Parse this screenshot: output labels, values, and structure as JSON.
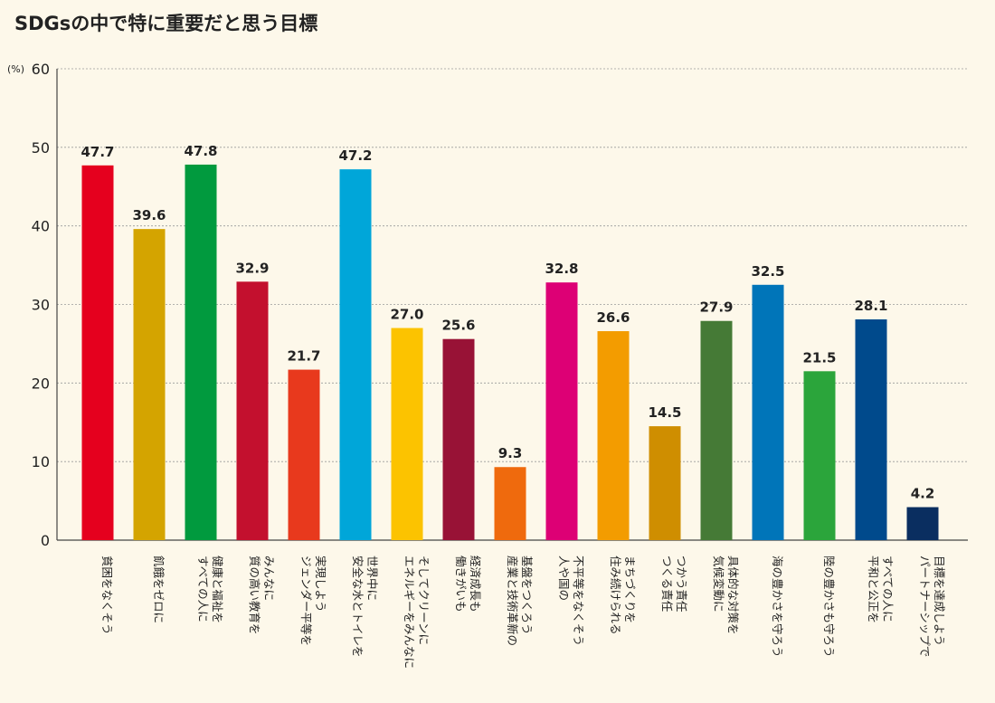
{
  "title": "SDGsの中で特に重要だと思う目標",
  "unit": "(%)",
  "chart_data": {
    "type": "bar",
    "title": "SDGsの中で特に重要だと思う目標",
    "ylabel": "(%)",
    "xlabel": "",
    "ylim": [
      0,
      60
    ],
    "yticks": [
      0,
      10,
      20,
      30,
      40,
      50,
      60
    ],
    "grid": true,
    "categories": [
      [
        "貧困をなくそう"
      ],
      [
        "飢餓をゼロに"
      ],
      [
        "すべての人に",
        "健康と福祉を"
      ],
      [
        "質の高い教育を",
        "みんなに"
      ],
      [
        "ジェンダー平等を",
        "実現しよう"
      ],
      [
        "安全な水とトイレを",
        "世界中に"
      ],
      [
        "エネルギーをみんなに",
        "そしてクリーンに"
      ],
      [
        "働きがいも",
        "経済成長も"
      ],
      [
        "産業と技術革新の",
        "基盤をつくろう"
      ],
      [
        "人や国の",
        "不平等をなくそう"
      ],
      [
        "住み続けられる",
        "まちづくりを"
      ],
      [
        "つくる責任",
        "つかう責任"
      ],
      [
        "気候変動に",
        "具体的な対策を"
      ],
      [
        "海の豊かさを守ろう"
      ],
      [
        "陸の豊かさも守ろう"
      ],
      [
        "平和と公正を",
        "すべての人に"
      ],
      [
        "パートナーシップで",
        "目標を達成しよう"
      ]
    ],
    "values": [
      47.7,
      39.6,
      47.8,
      32.9,
      21.7,
      47.2,
      27.0,
      25.6,
      9.3,
      32.8,
      26.6,
      14.5,
      27.9,
      32.5,
      21.5,
      28.1,
      4.2
    ],
    "value_labels": [
      "47.7",
      "39.6",
      "47.8",
      "32.9",
      "21.7",
      "47.2",
      "27.0",
      "25.6",
      "9.3",
      "32.8",
      "26.6",
      "14.5",
      "27.9",
      "32.5",
      "21.5",
      "28.1",
      "4.2"
    ],
    "colors": [
      "#e5001e",
      "#d4a400",
      "#019a3e",
      "#c3102e",
      "#e8391d",
      "#00a6d9",
      "#fcc300",
      "#981236",
      "#ef6a0d",
      "#dd0075",
      "#f39c00",
      "#cf8e00",
      "#457a36",
      "#0075b9",
      "#2ba53b",
      "#004a8c",
      "#0a2e60"
    ]
  }
}
